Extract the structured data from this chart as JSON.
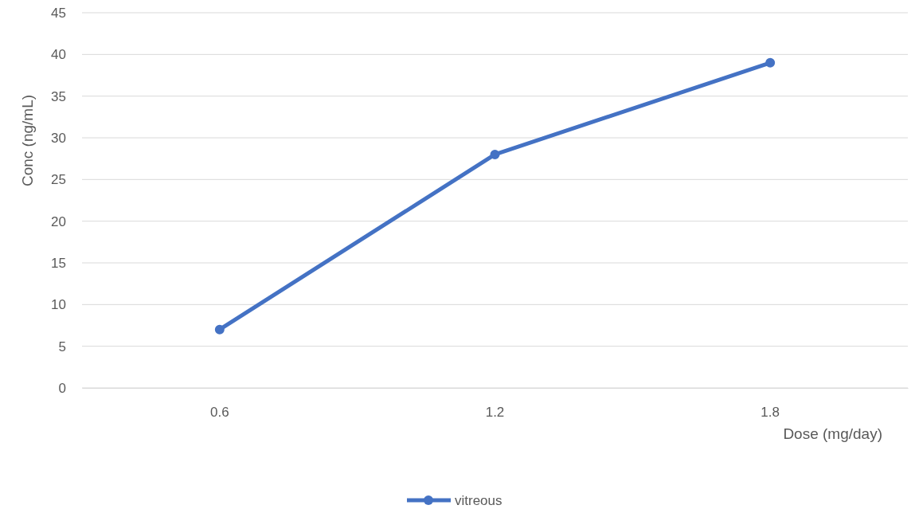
{
  "chart_data": {
    "type": "line",
    "xlabel": "Dose (mg/day)",
    "ylabel": "Conc (ng/mL)",
    "categories": [
      "0.6",
      "1.2",
      "1.8"
    ],
    "series": [
      {
        "name": "vitreous",
        "color": "#4472c4",
        "values": [
          7,
          28,
          39
        ]
      }
    ],
    "ylim": [
      0,
      45
    ],
    "yticks": [
      0,
      5,
      10,
      15,
      20,
      25,
      30,
      35,
      40,
      45
    ],
    "grid": "y",
    "legend": "bottom",
    "marker": "circle",
    "line_style": "solid"
  }
}
